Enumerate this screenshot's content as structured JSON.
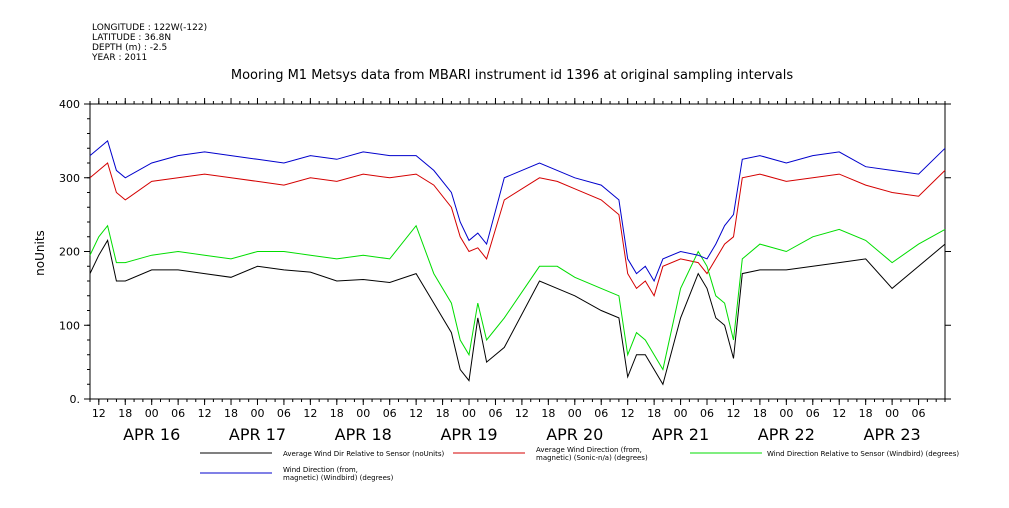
{
  "header": {
    "meta": [
      "LONGITUDE : 122W(-122)",
      "LATITUDE : 36.8N",
      "DEPTH (m) : -2.5",
      "YEAR : 2011"
    ],
    "title": "Mooring M1 Metsys data from MBARI instrument id 1396 at original sampling intervals"
  },
  "chart_data": {
    "type": "line",
    "title": "Mooring M1 Metsys data from MBARI instrument id 1396 at original sampling intervals",
    "ylabel": "noUnits",
    "xlabel": "",
    "ylim": [
      0,
      400
    ],
    "xlim": [
      "2011-04-15T10:00",
      "2011-04-23T12:00"
    ],
    "y_ticks": [
      "0.",
      "100",
      "200",
      "300",
      "400"
    ],
    "x_ticks": [
      {
        "t": "2011-04-15T12:00",
        "label": "12"
      },
      {
        "t": "2011-04-15T18:00",
        "label": "18"
      },
      {
        "t": "2011-04-16T00:00",
        "label": "00"
      },
      {
        "t": "2011-04-16T06:00",
        "label": "06"
      },
      {
        "t": "2011-04-16T12:00",
        "label": "12"
      },
      {
        "t": "2011-04-16T18:00",
        "label": "18"
      },
      {
        "t": "2011-04-17T00:00",
        "label": "00"
      },
      {
        "t": "2011-04-17T06:00",
        "label": "06"
      },
      {
        "t": "2011-04-17T12:00",
        "label": "12"
      },
      {
        "t": "2011-04-17T18:00",
        "label": "18"
      },
      {
        "t": "2011-04-18T00:00",
        "label": "00"
      },
      {
        "t": "2011-04-18T06:00",
        "label": "06"
      },
      {
        "t": "2011-04-18T12:00",
        "label": "12"
      },
      {
        "t": "2011-04-18T18:00",
        "label": "18"
      },
      {
        "t": "2011-04-19T00:00",
        "label": "00"
      },
      {
        "t": "2011-04-19T06:00",
        "label": "06"
      },
      {
        "t": "2011-04-19T12:00",
        "label": "12"
      },
      {
        "t": "2011-04-19T18:00",
        "label": "18"
      },
      {
        "t": "2011-04-20T00:00",
        "label": "00"
      },
      {
        "t": "2011-04-20T06:00",
        "label": "06"
      },
      {
        "t": "2011-04-20T12:00",
        "label": "12"
      },
      {
        "t": "2011-04-20T18:00",
        "label": "18"
      },
      {
        "t": "2011-04-21T00:00",
        "label": "00"
      },
      {
        "t": "2011-04-21T06:00",
        "label": "06"
      },
      {
        "t": "2011-04-21T12:00",
        "label": "12"
      },
      {
        "t": "2011-04-21T18:00",
        "label": "18"
      },
      {
        "t": "2011-04-22T00:00",
        "label": "00"
      },
      {
        "t": "2011-04-22T06:00",
        "label": "06"
      },
      {
        "t": "2011-04-22T12:00",
        "label": "12"
      },
      {
        "t": "2011-04-22T18:00",
        "label": "18"
      },
      {
        "t": "2011-04-23T00:00",
        "label": "00"
      },
      {
        "t": "2011-04-23T06:00",
        "label": "06"
      }
    ],
    "date_labels": [
      {
        "t": "2011-04-16T00:00",
        "label": "APR 16"
      },
      {
        "t": "2011-04-17T00:00",
        "label": "APR 17"
      },
      {
        "t": "2011-04-18T00:00",
        "label": "APR 18"
      },
      {
        "t": "2011-04-19T00:00",
        "label": "APR 19"
      },
      {
        "t": "2011-04-20T00:00",
        "label": "APR 20"
      },
      {
        "t": "2011-04-21T00:00",
        "label": "APR 21"
      },
      {
        "t": "2011-04-22T00:00",
        "label": "APR 22"
      },
      {
        "t": "2011-04-23T00:00",
        "label": "APR 23"
      }
    ],
    "series": [
      {
        "name_lines": [
          "Average Wind Dir Relative to Sensor (noUnits)"
        ],
        "color": "#000000",
        "x": [
          "2011-04-15T10:00",
          "2011-04-15T12:00",
          "2011-04-15T14:00",
          "2011-04-15T16:00",
          "2011-04-15T18:00",
          "2011-04-16T00:00",
          "2011-04-16T06:00",
          "2011-04-16T12:00",
          "2011-04-16T18:00",
          "2011-04-17T00:00",
          "2011-04-17T06:00",
          "2011-04-17T12:00",
          "2011-04-17T18:00",
          "2011-04-18T00:00",
          "2011-04-18T06:00",
          "2011-04-18T12:00",
          "2011-04-18T16:00",
          "2011-04-18T20:00",
          "2011-04-18T22:00",
          "2011-04-19T00:00",
          "2011-04-19T02:00",
          "2011-04-19T04:00",
          "2011-04-19T08:00",
          "2011-04-19T16:00",
          "2011-04-19T20:00",
          "2011-04-20T00:00",
          "2011-04-20T06:00",
          "2011-04-20T10:00",
          "2011-04-20T12:00",
          "2011-04-20T14:00",
          "2011-04-20T16:00",
          "2011-04-20T18:00",
          "2011-04-20T20:00",
          "2011-04-21T00:00",
          "2011-04-21T04:00",
          "2011-04-21T06:00",
          "2011-04-21T08:00",
          "2011-04-21T10:00",
          "2011-04-21T12:00",
          "2011-04-21T14:00",
          "2011-04-21T18:00",
          "2011-04-22T00:00",
          "2011-04-22T06:00",
          "2011-04-22T12:00",
          "2011-04-22T18:00",
          "2011-04-23T00:00",
          "2011-04-23T06:00",
          "2011-04-23T12:00"
        ],
        "y": [
          170,
          195,
          215,
          160,
          160,
          175,
          175,
          170,
          165,
          180,
          175,
          172,
          160,
          162,
          158,
          170,
          130,
          90,
          40,
          25,
          110,
          50,
          70,
          160,
          150,
          140,
          120,
          110,
          30,
          60,
          60,
          40,
          20,
          110,
          170,
          150,
          110,
          100,
          55,
          170,
          175,
          175,
          180,
          185,
          190,
          150,
          180,
          210
        ]
      },
      {
        "name_lines": [
          "Average Wind Direction (from,",
          "magnetic) (Sonic-n/a) (degrees)"
        ],
        "color": "#d40000",
        "x": [
          "2011-04-15T10:00",
          "2011-04-15T12:00",
          "2011-04-15T14:00",
          "2011-04-15T16:00",
          "2011-04-15T18:00",
          "2011-04-16T00:00",
          "2011-04-16T06:00",
          "2011-04-16T12:00",
          "2011-04-16T18:00",
          "2011-04-17T00:00",
          "2011-04-17T06:00",
          "2011-04-17T12:00",
          "2011-04-17T18:00",
          "2011-04-18T00:00",
          "2011-04-18T06:00",
          "2011-04-18T12:00",
          "2011-04-18T16:00",
          "2011-04-18T20:00",
          "2011-04-18T22:00",
          "2011-04-19T00:00",
          "2011-04-19T02:00",
          "2011-04-19T04:00",
          "2011-04-19T08:00",
          "2011-04-19T16:00",
          "2011-04-19T20:00",
          "2011-04-20T00:00",
          "2011-04-20T06:00",
          "2011-04-20T10:00",
          "2011-04-20T12:00",
          "2011-04-20T14:00",
          "2011-04-20T16:00",
          "2011-04-20T18:00",
          "2011-04-20T20:00",
          "2011-04-21T00:00",
          "2011-04-21T04:00",
          "2011-04-21T06:00",
          "2011-04-21T08:00",
          "2011-04-21T10:00",
          "2011-04-21T12:00",
          "2011-04-21T14:00",
          "2011-04-21T18:00",
          "2011-04-22T00:00",
          "2011-04-22T06:00",
          "2011-04-22T12:00",
          "2011-04-22T18:00",
          "2011-04-23T00:00",
          "2011-04-23T06:00",
          "2011-04-23T12:00"
        ],
        "y": [
          300,
          310,
          320,
          280,
          270,
          295,
          300,
          305,
          300,
          295,
          290,
          300,
          295,
          305,
          300,
          305,
          290,
          260,
          220,
          200,
          205,
          190,
          270,
          300,
          295,
          285,
          270,
          250,
          170,
          150,
          160,
          140,
          180,
          190,
          185,
          170,
          190,
          210,
          220,
          300,
          305,
          295,
          300,
          305,
          290,
          280,
          275,
          310
        ]
      },
      {
        "name_lines": [
          "Wind Direction Relative to Sensor (Windbird) (degrees)"
        ],
        "color": "#00dd00",
        "x": [
          "2011-04-15T10:00",
          "2011-04-15T12:00",
          "2011-04-15T14:00",
          "2011-04-15T16:00",
          "2011-04-15T18:00",
          "2011-04-16T00:00",
          "2011-04-16T06:00",
          "2011-04-16T12:00",
          "2011-04-16T18:00",
          "2011-04-17T00:00",
          "2011-04-17T06:00",
          "2011-04-17T12:00",
          "2011-04-17T18:00",
          "2011-04-18T00:00",
          "2011-04-18T06:00",
          "2011-04-18T12:00",
          "2011-04-18T16:00",
          "2011-04-18T20:00",
          "2011-04-18T22:00",
          "2011-04-19T00:00",
          "2011-04-19T02:00",
          "2011-04-19T04:00",
          "2011-04-19T08:00",
          "2011-04-19T16:00",
          "2011-04-19T20:00",
          "2011-04-20T00:00",
          "2011-04-20T06:00",
          "2011-04-20T10:00",
          "2011-04-20T12:00",
          "2011-04-20T14:00",
          "2011-04-20T16:00",
          "2011-04-20T18:00",
          "2011-04-20T20:00",
          "2011-04-21T00:00",
          "2011-04-21T04:00",
          "2011-04-21T06:00",
          "2011-04-21T08:00",
          "2011-04-21T10:00",
          "2011-04-21T12:00",
          "2011-04-21T14:00",
          "2011-04-21T18:00",
          "2011-04-22T00:00",
          "2011-04-22T06:00",
          "2011-04-22T12:00",
          "2011-04-22T18:00",
          "2011-04-23T00:00",
          "2011-04-23T06:00",
          "2011-04-23T12:00"
        ],
        "y": [
          195,
          220,
          235,
          185,
          185,
          195,
          200,
          195,
          190,
          200,
          200,
          195,
          190,
          195,
          190,
          235,
          170,
          130,
          80,
          60,
          130,
          80,
          110,
          180,
          180,
          165,
          150,
          140,
          60,
          90,
          80,
          60,
          40,
          150,
          200,
          180,
          140,
          130,
          80,
          190,
          210,
          200,
          220,
          230,
          215,
          185,
          210,
          230
        ]
      },
      {
        "name_lines": [
          "Wind Direction (from,",
          "magnetic) (Windbird) (degrees)"
        ],
        "color": "#0000cc",
        "x": [
          "2011-04-15T10:00",
          "2011-04-15T12:00",
          "2011-04-15T14:00",
          "2011-04-15T16:00",
          "2011-04-15T18:00",
          "2011-04-16T00:00",
          "2011-04-16T06:00",
          "2011-04-16T12:00",
          "2011-04-16T18:00",
          "2011-04-17T00:00",
          "2011-04-17T06:00",
          "2011-04-17T12:00",
          "2011-04-17T18:00",
          "2011-04-18T00:00",
          "2011-04-18T06:00",
          "2011-04-18T12:00",
          "2011-04-18T16:00",
          "2011-04-18T20:00",
          "2011-04-18T22:00",
          "2011-04-19T00:00",
          "2011-04-19T02:00",
          "2011-04-19T04:00",
          "2011-04-19T08:00",
          "2011-04-19T16:00",
          "2011-04-19T20:00",
          "2011-04-20T00:00",
          "2011-04-20T06:00",
          "2011-04-20T10:00",
          "2011-04-20T12:00",
          "2011-04-20T14:00",
          "2011-04-20T16:00",
          "2011-04-20T18:00",
          "2011-04-20T20:00",
          "2011-04-21T00:00",
          "2011-04-21T04:00",
          "2011-04-21T06:00",
          "2011-04-21T08:00",
          "2011-04-21T10:00",
          "2011-04-21T12:00",
          "2011-04-21T14:00",
          "2011-04-21T18:00",
          "2011-04-22T00:00",
          "2011-04-22T06:00",
          "2011-04-22T12:00",
          "2011-04-22T18:00",
          "2011-04-23T00:00",
          "2011-04-23T06:00",
          "2011-04-23T12:00"
        ],
        "y": [
          330,
          340,
          350,
          310,
          300,
          320,
          330,
          335,
          330,
          325,
          320,
          330,
          325,
          335,
          330,
          330,
          310,
          280,
          240,
          215,
          225,
          210,
          300,
          320,
          310,
          300,
          290,
          270,
          190,
          170,
          180,
          160,
          190,
          200,
          195,
          190,
          210,
          235,
          250,
          325,
          330,
          320,
          330,
          335,
          315,
          310,
          305,
          340
        ]
      }
    ]
  }
}
